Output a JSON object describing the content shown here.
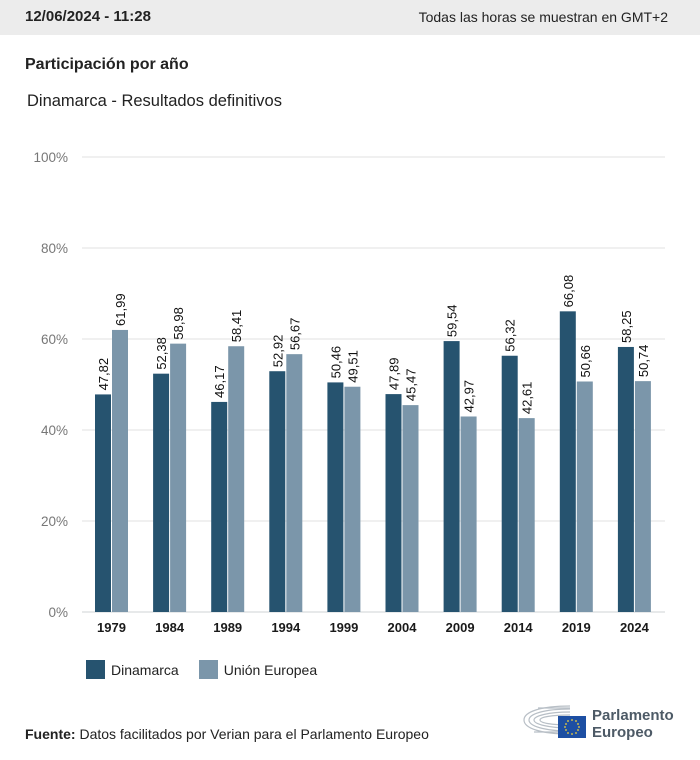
{
  "header": {
    "datetime": "12/06/2024 - 11:28",
    "timezone_note": "Todas las horas se muestran en GMT+2"
  },
  "title": "Participación por año",
  "subtitle": "Dinamarca - Resultados definitivos",
  "colors": {
    "dinamarca": "#26536f",
    "union_europea": "#7b96aa",
    "grid": "#e2e2e2",
    "topbar": "#ececec"
  },
  "chart_data": {
    "type": "bar",
    "title": "Participación por año",
    "subtitle": "Dinamarca - Resultados definitivos",
    "xlabel": "",
    "ylabel": "",
    "ylim": [
      0,
      100
    ],
    "yticks": [
      "0%",
      "20%",
      "40%",
      "60%",
      "80%",
      "100%"
    ],
    "ytick_values": [
      0,
      20,
      40,
      60,
      80,
      100
    ],
    "grid": true,
    "legend_position": "bottom-left",
    "categories": [
      "1979",
      "1984",
      "1989",
      "1994",
      "1999",
      "2004",
      "2009",
      "2014",
      "2019",
      "2024"
    ],
    "series": [
      {
        "name": "Dinamarca",
        "values": [
          47.82,
          52.38,
          46.17,
          52.92,
          50.46,
          47.89,
          59.54,
          56.32,
          66.08,
          58.25
        ],
        "labels": [
          "47,82",
          "52,38",
          "46,17",
          "52,92",
          "50,46",
          "47,89",
          "59,54",
          "56,32",
          "66,08",
          "58,25"
        ]
      },
      {
        "name": "Unión Europea",
        "values": [
          61.99,
          58.98,
          58.41,
          56.67,
          49.51,
          45.47,
          42.97,
          42.61,
          50.66,
          50.74
        ],
        "labels": [
          "61,99",
          "58,98",
          "58,41",
          "56,67",
          "49,51",
          "45,47",
          "42,97",
          "42,61",
          "50,66",
          "50,74"
        ]
      }
    ]
  },
  "legend": {
    "items": [
      {
        "label": "Dinamarca"
      },
      {
        "label": "Unión Europea"
      }
    ]
  },
  "footer": {
    "source_label": "Fuente:",
    "source_text": "Datos facilitados por Verian para el Parlamento Europeo"
  },
  "logo": {
    "line1": "Parlamento",
    "line2": "Europeo"
  }
}
